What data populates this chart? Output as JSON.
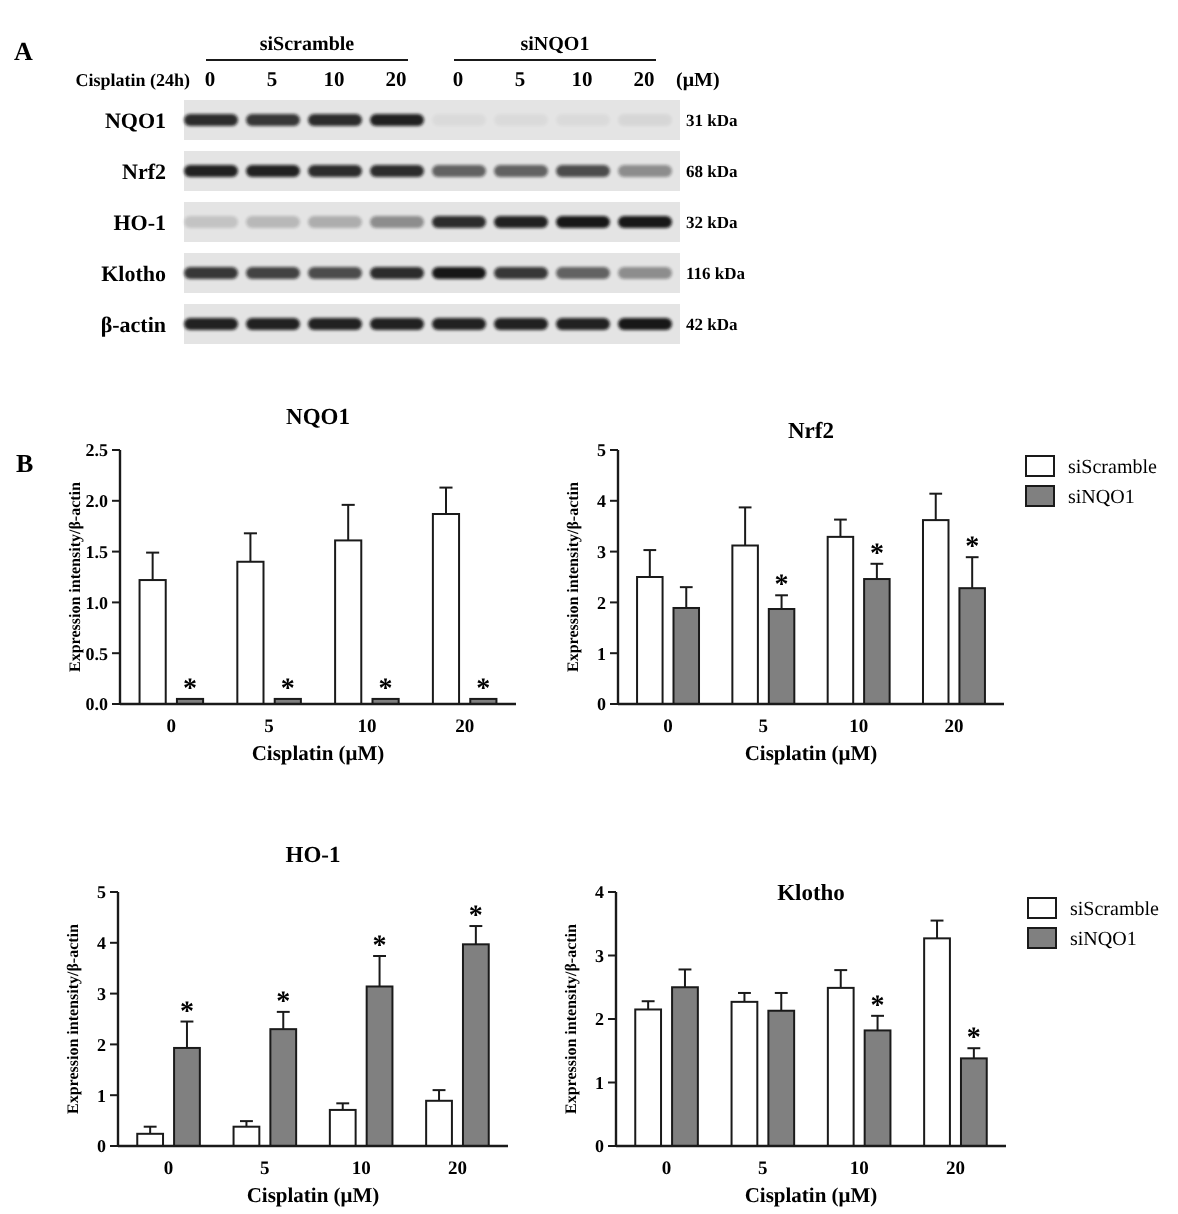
{
  "chart_data": [
    {
      "type": "other",
      "categories": [
        "0",
        "5",
        "10",
        "20",
        "0",
        "5",
        "10",
        "20"
      ],
      "y_categories": [
        "NQO1",
        "Nrf2",
        "HO-1",
        "Klotho",
        "β-actin"
      ],
      "y2_categories": [
        "31 kDa",
        "68 kDa",
        "32 kDa",
        "116 kDa",
        "42 kDa"
      ],
      "annotations": [
        "A",
        "siScramble",
        "siNQO1",
        "Cisplatin (24h)",
        "(μM)"
      ]
    },
    {
      "type": "bar",
      "title": "NQO1",
      "xlabel": "Cisplatin (μM)",
      "ylabel": "Expression intensity/β-actin",
      "categories": [
        "0",
        "5",
        "10",
        "20"
      ],
      "series": [
        {
          "color": "#ffffff",
          "values": [
            1.22,
            1.4,
            1.61,
            1.87
          ],
          "errors": [
            [
              1.22,
              1.49
            ],
            [
              1.4,
              1.68
            ],
            [
              1.61,
              1.96
            ],
            [
              1.87,
              2.13
            ]
          ]
        },
        {
          "color": "#808080",
          "values": [
            0.05,
            0.05,
            0.05,
            0.05
          ]
        }
      ],
      "ylim": [
        0,
        2.5
      ],
      "yticks": [
        {
          "value": 0,
          "label": "0.0"
        },
        0.5,
        {
          "value": 1,
          "label": "1.0"
        },
        1.5,
        {
          "value": 2,
          "label": "2.0"
        },
        2.5
      ],
      "annotations": [
        "B",
        {
          "text": "*",
          "x": "0",
          "y": 0.05
        },
        {
          "text": "*",
          "x": "5",
          "y": 0.05
        },
        {
          "text": "*",
          "x": "10",
          "y": 0.05
        },
        {
          "text": "*",
          "x": "20",
          "y": 0.05
        }
      ]
    },
    {
      "type": "bar",
      "title": "Nrf2",
      "xlabel": "Cisplatin (μM)",
      "ylabel": "Expression intensity/β-actin",
      "categories": [
        "0",
        "5",
        "10",
        "20"
      ],
      "series": [
        {
          "name": "siScramble",
          "color": "#ffffff",
          "values": [
            2.5,
            3.12,
            3.29,
            3.62
          ],
          "errors": [
            [
              2.5,
              3.03
            ],
            [
              3.12,
              3.87
            ],
            [
              3.29,
              3.63
            ],
            [
              3.62,
              4.14
            ]
          ]
        },
        {
          "name": "siNQO1",
          "color": "#808080",
          "values": [
            1.89,
            1.87,
            2.46,
            2.28
          ],
          "errors": [
            [
              1.89,
              2.3
            ],
            [
              1.87,
              2.14
            ],
            [
              2.46,
              2.76
            ],
            [
              2.28,
              2.89
            ]
          ]
        }
      ],
      "ylim": [
        0,
        5
      ],
      "yticks": [
        0,
        1,
        2,
        3,
        4,
        5
      ],
      "legend": "right",
      "annotations": [
        {
          "text": "*",
          "x": "5",
          "y": 1.87
        },
        {
          "text": "*",
          "x": "10",
          "y": 2.46
        },
        {
          "text": "*",
          "x": "20",
          "y": 2.28
        }
      ]
    },
    {
      "type": "bar",
      "title": "HO-1",
      "xlabel": "Cisplatin (μM)",
      "ylabel": "Expression intensity/β-actin",
      "categories": [
        "0",
        "5",
        "10",
        "20"
      ],
      "series": [
        {
          "color": "#ffffff",
          "values": [
            0.24,
            0.38,
            0.71,
            0.89
          ],
          "errors": [
            [
              0.24,
              0.38
            ],
            [
              0.38,
              0.49
            ],
            [
              0.71,
              0.84
            ],
            [
              0.89,
              1.1
            ]
          ]
        },
        {
          "color": "#808080",
          "values": [
            1.93,
            2.3,
            3.14,
            3.97
          ],
          "errors": [
            [
              1.93,
              2.45
            ],
            [
              2.3,
              2.64
            ],
            [
              3.14,
              3.74
            ],
            [
              3.97,
              4.33
            ]
          ]
        }
      ],
      "ylim": [
        0,
        5
      ],
      "yticks": [
        0,
        1,
        2,
        3,
        4,
        5
      ],
      "annotations": [
        {
          "text": "*",
          "x": "0",
          "y": 1.93
        },
        {
          "text": "*",
          "x": "5",
          "y": 2.3
        },
        {
          "text": "*",
          "x": "10",
          "y": 3.14
        },
        {
          "text": "*",
          "x": "20",
          "y": 3.97
        }
      ]
    },
    {
      "type": "bar",
      "title": "Klotho",
      "xlabel": "Cisplatin (μM)",
      "ylabel": "Expression intensity/β-actin",
      "categories": [
        "0",
        "5",
        "10",
        "20"
      ],
      "series": [
        {
          "name": "siScramble",
          "color": "#ffffff",
          "values": [
            2.15,
            2.27,
            2.49,
            3.27
          ],
          "errors": [
            [
              2.15,
              2.28
            ],
            [
              2.27,
              2.41
            ],
            [
              2.49,
              2.77
            ],
            [
              3.27,
              3.55
            ]
          ]
        },
        {
          "name": "siNQO1",
          "color": "#808080",
          "values": [
            2.5,
            2.13,
            1.82,
            1.38
          ],
          "errors": [
            [
              2.5,
              2.78
            ],
            [
              2.13,
              2.41
            ],
            [
              1.82,
              2.05
            ],
            [
              1.38,
              1.54
            ]
          ]
        }
      ],
      "ylim": [
        0,
        4
      ],
      "yticks": [
        0,
        1,
        2,
        3,
        4
      ],
      "legend": "right",
      "annotations": [
        {
          "text": "*",
          "x": "10",
          "y": 1.82
        },
        {
          "text": "*",
          "x": "20",
          "y": 1.38
        }
      ]
    }
  ]
}
